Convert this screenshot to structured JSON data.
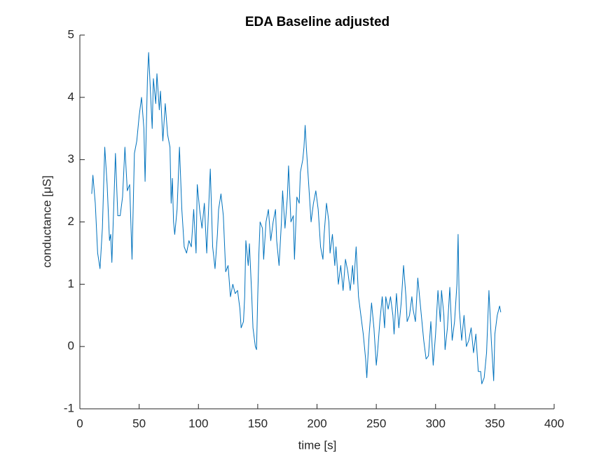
{
  "chart_data": {
    "type": "line",
    "title": "EDA Baseline adjusted",
    "x_label": "time [s]",
    "y_label": "conductance [μS]",
    "color": "#0072bd",
    "x": [
      10,
      11,
      13,
      15,
      17,
      19,
      21,
      23,
      25,
      26,
      27,
      29,
      30,
      32,
      34,
      36,
      38,
      40,
      42,
      44,
      46,
      48,
      50,
      52,
      54,
      55,
      57,
      58,
      60,
      61,
      62,
      64,
      65,
      67,
      68,
      70,
      72,
      74,
      76,
      77,
      78,
      79,
      80,
      82,
      84,
      86,
      88,
      90,
      92,
      94,
      96,
      98,
      99,
      101,
      103,
      105,
      107,
      109,
      110,
      112,
      114,
      116,
      117,
      119,
      121,
      123,
      125,
      127,
      129,
      131,
      133,
      135,
      136,
      138,
      139,
      140,
      142,
      143,
      145,
      146,
      148,
      149,
      150,
      151,
      152,
      154,
      155,
      157,
      159,
      161,
      163,
      165,
      166,
      168,
      170,
      171,
      173,
      175,
      176,
      178,
      180,
      181,
      183,
      185,
      186,
      188,
      189,
      190,
      191,
      193,
      195,
      197,
      199,
      201,
      203,
      205,
      206,
      208,
      210,
      211,
      213,
      215,
      216,
      218,
      220,
      222,
      224,
      226,
      228,
      230,
      231,
      233,
      235,
      237,
      239,
      241,
      242,
      244,
      246,
      248,
      250,
      251,
      253,
      255,
      257,
      258,
      260,
      262,
      264,
      265,
      267,
      269,
      271,
      273,
      275,
      276,
      278,
      280,
      281,
      283,
      285,
      287,
      289,
      290,
      292,
      294,
      296,
      298,
      300,
      302,
      304,
      305,
      307,
      308,
      310,
      312,
      314,
      316,
      318,
      319,
      320,
      322,
      324,
      326,
      328,
      330,
      332,
      334,
      336,
      338,
      339,
      341,
      343,
      344,
      345,
      347,
      349,
      350,
      352,
      354,
      355
    ],
    "values": [
      2.45,
      2.75,
      2.3,
      1.5,
      1.25,
      1.9,
      3.2,
      2.6,
      1.7,
      1.8,
      1.35,
      2.5,
      3.1,
      2.1,
      2.1,
      2.4,
      3.2,
      2.5,
      2.6,
      1.4,
      3.1,
      3.3,
      3.7,
      4.0,
      3.5,
      2.65,
      4.3,
      4.72,
      3.9,
      3.5,
      4.3,
      3.9,
      4.38,
      3.8,
      4.1,
      3.3,
      3.9,
      3.4,
      3.2,
      2.3,
      2.7,
      2.0,
      1.8,
      2.2,
      3.2,
      2.2,
      1.6,
      1.5,
      1.7,
      1.6,
      2.2,
      1.5,
      2.6,
      2.2,
      1.9,
      2.3,
      1.5,
      2.4,
      2.85,
      1.6,
      1.25,
      1.8,
      2.2,
      2.45,
      2.1,
      1.2,
      1.3,
      0.8,
      1.0,
      0.85,
      0.9,
      0.6,
      0.3,
      0.4,
      0.8,
      1.7,
      1.3,
      1.65,
      0.8,
      0.3,
      0.0,
      -0.05,
      0.8,
      1.5,
      2.0,
      1.9,
      1.4,
      2.0,
      2.2,
      1.7,
      2.0,
      2.2,
      1.7,
      1.3,
      2.0,
      2.5,
      1.9,
      2.4,
      2.9,
      2.0,
      2.1,
      1.4,
      2.4,
      2.3,
      2.8,
      3.0,
      3.2,
      3.55,
      3.2,
      2.6,
      2.0,
      2.3,
      2.5,
      2.2,
      1.6,
      1.4,
      1.8,
      2.3,
      2.0,
      1.5,
      1.8,
      1.3,
      1.6,
      1.0,
      1.3,
      0.9,
      1.4,
      1.2,
      0.9,
      1.3,
      1.0,
      1.6,
      0.8,
      0.5,
      0.2,
      -0.2,
      -0.5,
      0.2,
      0.7,
      0.3,
      -0.3,
      -0.1,
      0.4,
      0.8,
      0.3,
      0.8,
      0.6,
      0.8,
      0.5,
      0.2,
      0.85,
      0.3,
      0.7,
      1.3,
      0.8,
      0.4,
      0.5,
      0.8,
      0.6,
      0.4,
      1.1,
      0.7,
      0.3,
      0.1,
      -0.2,
      -0.15,
      0.4,
      -0.3,
      0.2,
      0.9,
      0.4,
      0.9,
      0.5,
      -0.05,
      0.3,
      0.95,
      0.1,
      0.4,
      1.0,
      1.8,
      0.6,
      0.1,
      0.5,
      0.0,
      0.1,
      0.3,
      -0.1,
      0.2,
      -0.4,
      -0.4,
      -0.6,
      -0.5,
      -0.1,
      0.4,
      0.9,
      0.1,
      -0.55,
      0.2,
      0.5,
      0.65,
      0.55
    ],
    "xlim": [
      0,
      400
    ],
    "xticks": [
      0,
      50,
      100,
      150,
      200,
      250,
      300,
      350,
      400
    ],
    "ylim": [
      -1,
      5
    ],
    "yticks": [
      -1,
      0,
      1,
      2,
      3,
      4,
      5
    ]
  }
}
